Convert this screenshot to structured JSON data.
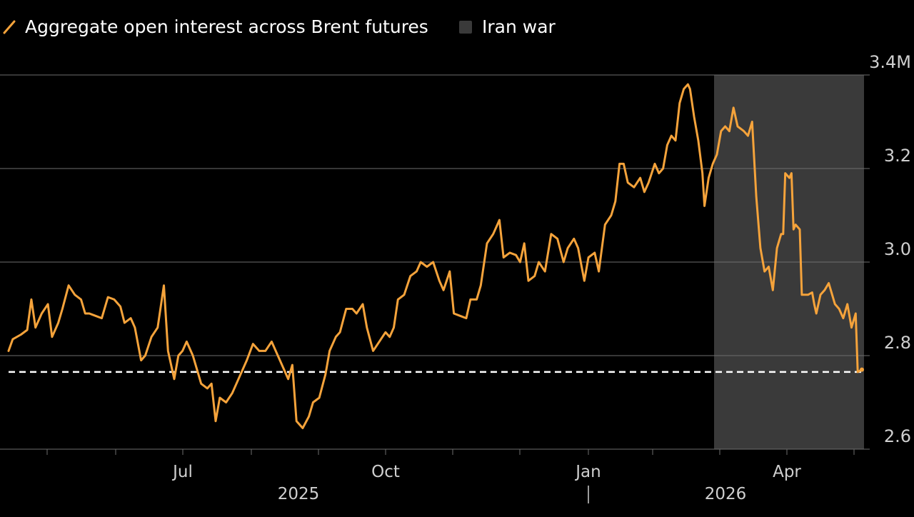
{
  "colors": {
    "background": "#000000",
    "line": "#F5A33B",
    "shade": "#3A3A3A",
    "grid": "#6E6E6E",
    "axis_text": "#CFCFCF",
    "reference_line": "#FFFFFF"
  },
  "legend": {
    "line_label": "Aggregate open interest across Brent futures",
    "shade_label": "Iran war",
    "line_icon": "diagonal-line-icon",
    "shade_icon": "square-swatch-icon"
  },
  "chart_data": {
    "type": "line",
    "title": "",
    "xlabel": "",
    "ylabel": "",
    "ylim": [
      2.58,
      3.4
    ],
    "yticks": [
      2.6,
      2.8,
      3.0,
      3.2,
      3.4
    ],
    "ytick_labels": [
      "2.6",
      "2.8",
      "3.0",
      "3.2",
      "3.4M"
    ],
    "xlim": [
      "2025-04-03",
      "2026-04-23"
    ],
    "xticks": [
      "2025-05-01",
      "2025-06-01",
      "2025-07-01",
      "2025-08-01",
      "2025-09-01",
      "2025-10-01",
      "2025-11-01",
      "2025-12-01",
      "2026-01-01",
      "2026-02-01",
      "2026-03-01",
      "2026-04-01",
      "2026-05-01"
    ],
    "xtick_labels": [
      {
        "date": "2025-07-01",
        "label": "Jul"
      },
      {
        "date": "2025-10-01",
        "label": "Oct"
      },
      {
        "date": "2026-01-01",
        "label": "Jan"
      },
      {
        "date": "2026-04-01",
        "label": "Apr"
      }
    ],
    "year_labels": [
      {
        "date": "2025-08-15",
        "label": "2025"
      },
      {
        "date": "2026-02-15",
        "label": "2026"
      }
    ],
    "year_divider": "2026-01-01",
    "grid": true,
    "legend_position": "top-left",
    "shaded_regions": [
      {
        "name": "Iran war",
        "start": "2026-02-27",
        "end": "2026-04-23"
      }
    ],
    "reference_line": {
      "y": 2.765,
      "style": "dashed"
    },
    "series": [
      {
        "name": "Aggregate open interest across Brent futures",
        "points": [
          [
            "2025-04-03",
            2.81
          ],
          [
            "2025-04-05",
            2.835
          ],
          [
            "2025-04-09",
            2.845
          ],
          [
            "2025-04-12",
            2.855
          ],
          [
            "2025-04-14",
            2.92
          ],
          [
            "2025-04-16",
            2.86
          ],
          [
            "2025-04-19",
            2.89
          ],
          [
            "2025-04-22",
            2.91
          ],
          [
            "2025-04-24",
            2.84
          ],
          [
            "2025-04-27",
            2.87
          ],
          [
            "2025-04-29",
            2.9
          ],
          [
            "2025-05-02",
            2.95
          ],
          [
            "2025-05-05",
            2.93
          ],
          [
            "2025-05-08",
            2.92
          ],
          [
            "2025-05-10",
            2.89
          ],
          [
            "2025-05-12",
            2.89
          ],
          [
            "2025-05-15",
            2.885
          ],
          [
            "2025-05-18",
            2.88
          ],
          [
            "2025-05-21",
            2.925
          ],
          [
            "2025-05-24",
            2.92
          ],
          [
            "2025-05-27",
            2.905
          ],
          [
            "2025-05-29",
            2.87
          ],
          [
            "2025-06-01",
            2.88
          ],
          [
            "2025-06-03",
            2.86
          ],
          [
            "2025-06-06",
            2.79
          ],
          [
            "2025-06-08",
            2.8
          ],
          [
            "2025-06-11",
            2.84
          ],
          [
            "2025-06-14",
            2.86
          ],
          [
            "2025-06-17",
            2.95
          ],
          [
            "2025-06-19",
            2.81
          ],
          [
            "2025-06-22",
            2.75
          ],
          [
            "2025-06-24",
            2.8
          ],
          [
            "2025-06-26",
            2.81
          ],
          [
            "2025-06-28",
            2.83
          ],
          [
            "2025-07-01",
            2.8
          ],
          [
            "2025-07-03",
            2.77
          ],
          [
            "2025-07-05",
            2.74
          ],
          [
            "2025-07-08",
            2.73
          ],
          [
            "2025-07-10",
            2.74
          ],
          [
            "2025-07-12",
            2.66
          ],
          [
            "2025-07-14",
            2.71
          ],
          [
            "2025-07-17",
            2.7
          ],
          [
            "2025-07-20",
            2.72
          ],
          [
            "2025-07-24",
            2.76
          ],
          [
            "2025-07-27",
            2.79
          ],
          [
            "2025-07-30",
            2.825
          ],
          [
            "2025-08-02",
            2.81
          ],
          [
            "2025-08-05",
            2.81
          ],
          [
            "2025-08-08",
            2.83
          ],
          [
            "2025-08-11",
            2.8
          ],
          [
            "2025-08-14",
            2.77
          ],
          [
            "2025-08-16",
            2.75
          ],
          [
            "2025-08-18",
            2.78
          ],
          [
            "2025-08-20",
            2.66
          ],
          [
            "2025-08-23",
            2.645
          ],
          [
            "2025-08-26",
            2.67
          ],
          [
            "2025-08-28",
            2.7
          ],
          [
            "2025-08-31",
            2.71
          ],
          [
            "2025-09-03",
            2.76
          ],
          [
            "2025-09-05",
            2.81
          ],
          [
            "2025-09-08",
            2.84
          ],
          [
            "2025-09-10",
            2.85
          ],
          [
            "2025-09-13",
            2.9
          ],
          [
            "2025-09-16",
            2.9
          ],
          [
            "2025-09-18",
            2.89
          ],
          [
            "2025-09-21",
            2.91
          ],
          [
            "2025-09-23",
            2.86
          ],
          [
            "2025-09-26",
            2.81
          ],
          [
            "2025-09-29",
            2.83
          ],
          [
            "2025-10-02",
            2.85
          ],
          [
            "2025-10-04",
            2.84
          ],
          [
            "2025-10-06",
            2.86
          ],
          [
            "2025-10-08",
            2.92
          ],
          [
            "2025-10-11",
            2.93
          ],
          [
            "2025-10-14",
            2.97
          ],
          [
            "2025-10-17",
            2.98
          ],
          [
            "2025-10-19",
            3.0
          ],
          [
            "2025-10-22",
            2.99
          ],
          [
            "2025-10-25",
            3.0
          ],
          [
            "2025-10-28",
            2.96
          ],
          [
            "2025-10-30",
            2.94
          ],
          [
            "2025-11-02",
            2.98
          ],
          [
            "2025-11-04",
            2.89
          ],
          [
            "2025-11-07",
            2.885
          ],
          [
            "2025-11-10",
            2.88
          ],
          [
            "2025-11-12",
            2.92
          ],
          [
            "2025-11-15",
            2.92
          ],
          [
            "2025-11-17",
            2.95
          ],
          [
            "2025-11-20",
            3.04
          ],
          [
            "2025-11-23",
            3.06
          ],
          [
            "2025-11-26",
            3.09
          ],
          [
            "2025-11-28",
            3.01
          ],
          [
            "2025-12-01",
            3.02
          ],
          [
            "2025-12-04",
            3.015
          ],
          [
            "2025-12-06",
            3.0
          ],
          [
            "2025-12-08",
            3.04
          ],
          [
            "2025-12-10",
            2.96
          ],
          [
            "2025-12-13",
            2.97
          ],
          [
            "2025-12-15",
            3.0
          ],
          [
            "2025-12-18",
            2.98
          ],
          [
            "2025-12-21",
            3.06
          ],
          [
            "2025-12-24",
            3.05
          ],
          [
            "2025-12-27",
            3.0
          ],
          [
            "2025-12-29",
            3.03
          ],
          [
            "2026-01-01",
            3.05
          ],
          [
            "2026-01-03",
            3.03
          ],
          [
            "2026-01-06",
            2.96
          ],
          [
            "2026-01-08",
            3.01
          ],
          [
            "2026-01-11",
            3.02
          ],
          [
            "2026-01-13",
            2.98
          ],
          [
            "2026-01-16",
            3.08
          ],
          [
            "2026-01-19",
            3.1
          ],
          [
            "2026-01-21",
            3.13
          ],
          [
            "2026-01-23",
            3.21
          ],
          [
            "2026-01-25",
            3.21
          ],
          [
            "2026-01-27",
            3.17
          ],
          [
            "2026-01-30",
            3.16
          ],
          [
            "2026-02-02",
            3.18
          ],
          [
            "2026-02-04",
            3.15
          ],
          [
            "2026-02-06",
            3.17
          ],
          [
            "2026-02-09",
            3.21
          ],
          [
            "2026-02-11",
            3.19
          ],
          [
            "2026-02-13",
            3.2
          ],
          [
            "2026-02-15",
            3.25
          ],
          [
            "2026-02-17",
            3.27
          ],
          [
            "2026-02-19",
            3.26
          ],
          [
            "2026-02-21",
            3.34
          ],
          [
            "2026-02-23",
            3.37
          ]
        ],
        "points_cont": [
          [
            "2026-02-25",
            3.38
          ],
          [
            "2026-02-26",
            3.37
          ],
          [
            "2026-02-28",
            3.31
          ],
          [
            "2026-03-02",
            3.26
          ],
          [
            "2026-03-04",
            3.19
          ],
          [
            "2026-03-05",
            3.12
          ],
          [
            "2026-03-07",
            3.18
          ],
          [
            "2026-03-09",
            3.21
          ],
          [
            "2026-03-11",
            3.23
          ],
          [
            "2026-03-13",
            3.28
          ],
          [
            "2026-03-15",
            3.29
          ],
          [
            "2026-03-17",
            3.28
          ],
          [
            "2026-03-19",
            3.33
          ],
          [
            "2026-03-21",
            3.29
          ],
          [
            "2026-03-24",
            3.28
          ],
          [
            "2026-03-26",
            3.27
          ],
          [
            "2026-03-28",
            3.3
          ],
          [
            "2026-03-30",
            3.14
          ],
          [
            "2026-04-01",
            3.03
          ],
          [
            "2026-04-03",
            2.98
          ],
          [
            "2026-04-05",
            2.99
          ],
          [
            "2026-04-07",
            2.94
          ],
          [
            "2026-04-09",
            3.03
          ],
          [
            "2026-04-11",
            3.06
          ]
        ]
      }
    ]
  }
}
